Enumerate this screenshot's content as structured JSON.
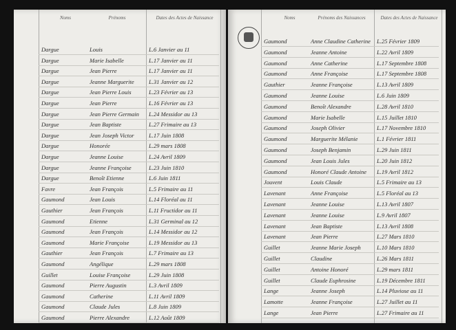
{
  "left_page": {
    "headers": [
      "Noms",
      "Prénoms",
      "Dates des Actes de Naissance"
    ],
    "rows": [
      [
        "Dargue",
        "Louis",
        "L.6 Janvier au 11"
      ],
      [
        "Dargue",
        "Marie Isabelle",
        "L.17 Janvier au 11"
      ],
      [
        "Dargue",
        "Jean Pierre",
        "L.17 Janvier au 11"
      ],
      [
        "Dargue",
        "Jeanne Marguerite",
        "L.31 Janvier au 12"
      ],
      [
        "Dargue",
        "Jean Pierre Louis",
        "L.23 Février au 13"
      ],
      [
        "Dargue",
        "Jean Pierre",
        "L.16 Février au 13"
      ],
      [
        "Dargue",
        "Jean Pierre Germain",
        "L.24 Messidor au 13"
      ],
      [
        "Dargue",
        "Jean Baptiste",
        "L.27 Frimaire au 13"
      ],
      [
        "Dargue",
        "Jean Joseph Victor",
        "L.17 Juin 1808"
      ],
      [
        "Dargue",
        "Honorée",
        "L.29 mars 1808"
      ],
      [
        "Dargue",
        "Jeanne Louise",
        "L.24 Avril 1809"
      ],
      [
        "Dargue",
        "Jeanne Françoise",
        "L.23 Juin 1810"
      ],
      [
        "Dargue",
        "Benoît Etienne",
        "L.6 Juin 1811"
      ],
      [
        "Favre",
        "Jean François",
        "L.5 Frimaire au 11"
      ],
      [
        "Gaumond",
        "Jean Louis",
        "L.14 Floréal au 11"
      ],
      [
        "Gauthier",
        "Jean François",
        "L.11 Fructidor au 11"
      ],
      [
        "Gaumond",
        "Etienne",
        "L.31 Germinal au 12"
      ],
      [
        "Gaumond",
        "Jean François",
        "L.14 Messidor au 12"
      ],
      [
        "Gaumond",
        "Marie Françoise",
        "L.19 Messidor au 13"
      ],
      [
        "Gauthier",
        "Jean François",
        "L.7 Frimaire au 13"
      ],
      [
        "Gaumond",
        "Angélique",
        "L.29 mars 1808"
      ],
      [
        "Guillet",
        "Louise Françoise",
        "L.29 Juin 1808"
      ],
      [
        "Gaumond",
        "Pierre Augustin",
        "L.3 Avril 1809"
      ],
      [
        "Gaumond",
        "Catherine",
        "L.11 Avril 1809"
      ],
      [
        "Gaumond",
        "Claude Jules",
        "L.8 Juin 1809"
      ],
      [
        "Gaumond",
        "Pierre Alexandre",
        "L.12 Août 1809"
      ]
    ]
  },
  "right_page": {
    "headers": [
      "Noms",
      "Prénoms des Naissances",
      "Dates des Actes de Naissance"
    ],
    "rows": [
      [
        "Gaumond",
        "Anne Claudine Catherine",
        "L.25 Février 1809"
      ],
      [
        "Gaumond",
        "Jeanne Antoine",
        "L.22 Avril 1809"
      ],
      [
        "Gaumond",
        "Anne Catherine",
        "L.17 Septembre 1808"
      ],
      [
        "Gaumond",
        "Anne Françoise",
        "L.17 Septembre 1808"
      ],
      [
        "Gauthier",
        "Jeanne Françoise",
        "L.13 Avril 1809"
      ],
      [
        "Gaumond",
        "Jeanne Louise",
        "L.6 Juin 1809"
      ],
      [
        "Gaumond",
        "Benoît Alexandre",
        "L.28 Avril 1810"
      ],
      [
        "Gaumond",
        "Marie Isabelle",
        "L.15 Juillet 1810"
      ],
      [
        "Gaumond",
        "Joseph Olivier",
        "L.17 Novembre 1810"
      ],
      [
        "Gaumond",
        "Marguerite Mélanie",
        "L.1 Février 1811"
      ],
      [
        "Gaumond",
        "Joseph Benjamin",
        "L.29 Juin 1811"
      ],
      [
        "Gaumond",
        "Jean Louis Jules",
        "L.20 Juin 1812"
      ],
      [
        "Gaumond",
        "Honoré Claude Antoine",
        "L.19 Avril 1812"
      ],
      [
        "Jouvent",
        "Louis Claude",
        "L.5 Frimaire au 13"
      ],
      [
        "Lavenant",
        "Anne Françoise",
        "L.5 Floréal au 13"
      ],
      [
        "Lavenant",
        "Jeanne Louise",
        "L.13 Avril 1807"
      ],
      [
        "Lavenant",
        "Jeanne Louise",
        "L.9 Avril 1807"
      ],
      [
        "Lavenant",
        "Jean Baptiste",
        "L.13 Avril 1808"
      ],
      [
        "Lavenant",
        "Jean Pierre",
        "L.27 Mars 1810"
      ],
      [
        "Guillet",
        "Jeanne Marie Joseph",
        "L.10 Mars 1810"
      ],
      [
        "Guillet",
        "Claudine",
        "L.26 Mars 1811"
      ],
      [
        "Guillet",
        "Antoine Honoré",
        "L.29 mars 1811"
      ],
      [
        "Guillet",
        "Claude Euphrosine",
        "L.19 Décembre 1811"
      ],
      [
        "Lange",
        "Jeanne Joseph",
        "L.14 Pluviose au 11"
      ],
      [
        "Lamotte",
        "Jeanne Françoise",
        "L.27 Juillet au 11"
      ],
      [
        "Lange",
        "Jean Pierre",
        "L.27 Frimaire au 11"
      ]
    ]
  }
}
